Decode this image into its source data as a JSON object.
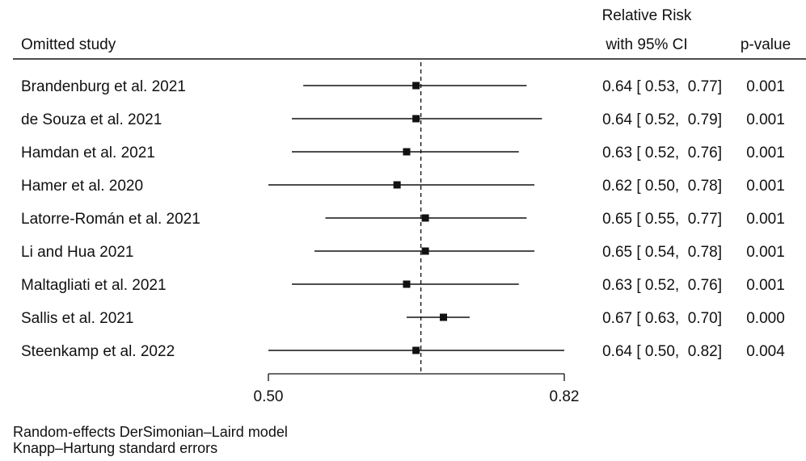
{
  "chart_data": {
    "type": "forest",
    "header": {
      "study_col": "Omitted study",
      "effect_col_line1": "Relative Risk",
      "effect_col_line2": "with 95% CI",
      "p_col": "p-value"
    },
    "rows": [
      {
        "study": "Brandenburg et al. 2021",
        "rr": 0.64,
        "lo": 0.53,
        "hi": 0.77,
        "ci_text": "0.64 [ 0.53,  0.77]",
        "p": "0.001"
      },
      {
        "study": "de Souza et al. 2021",
        "rr": 0.64,
        "lo": 0.52,
        "hi": 0.79,
        "ci_text": "0.64 [ 0.52,  0.79]",
        "p": "0.001"
      },
      {
        "study": "Hamdan et al. 2021",
        "rr": 0.63,
        "lo": 0.52,
        "hi": 0.76,
        "ci_text": "0.63 [ 0.52,  0.76]",
        "p": "0.001"
      },
      {
        "study": "Hamer et al. 2020",
        "rr": 0.62,
        "lo": 0.5,
        "hi": 0.78,
        "ci_text": "0.62 [ 0.50,  0.78]",
        "p": "0.001"
      },
      {
        "study": "Latorre-Román et al. 2021",
        "rr": 0.65,
        "lo": 0.55,
        "hi": 0.77,
        "ci_text": "0.65 [ 0.55,  0.77]",
        "p": "0.001"
      },
      {
        "study": "Li and Hua 2021",
        "rr": 0.65,
        "lo": 0.54,
        "hi": 0.78,
        "ci_text": "0.65 [ 0.54,  0.78]",
        "p": "0.001"
      },
      {
        "study": "Maltagliati et al. 2021",
        "rr": 0.63,
        "lo": 0.52,
        "hi": 0.76,
        "ci_text": "0.63 [ 0.52,  0.76]",
        "p": "0.001"
      },
      {
        "study": "Sallis et al. 2021",
        "rr": 0.67,
        "lo": 0.63,
        "hi": 0.7,
        "ci_text": "0.67 [ 0.63,  0.70]",
        "p": "0.000"
      },
      {
        "study": "Steenkamp et al. 2022",
        "rr": 0.64,
        "lo": 0.5,
        "hi": 0.82,
        "ci_text": "0.64 [ 0.50,  0.82]",
        "p": "0.004"
      }
    ],
    "x_axis": {
      "scale": "log",
      "ticks": [
        0.5,
        0.82
      ],
      "tick_labels": [
        "0.50",
        "0.82"
      ]
    },
    "reference_line": 0.64,
    "footnotes": [
      "Random-effects DerSimonian–Laird model",
      "Knapp–Hartung standard errors"
    ],
    "colors": {
      "ink": "#111111",
      "ci_line": "#111111",
      "marker": "#111111"
    }
  }
}
